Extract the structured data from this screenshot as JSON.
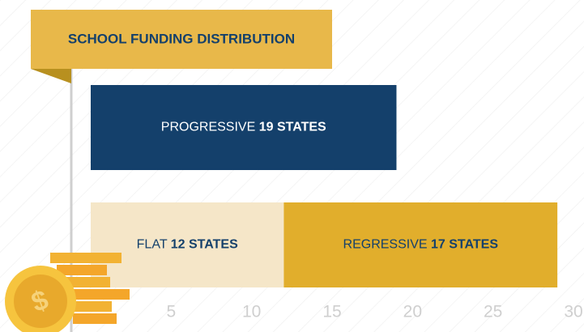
{
  "chart_data": {
    "type": "stacked-barh",
    "title": "SCHOOL FUNDING DISTRIBUTION",
    "categories": [
      null,
      null
    ],
    "series": [
      {
        "name": "PROGRESSIVE",
        "color": "#14406b",
        "values": [
          19,
          null
        ],
        "value_labels": [
          "19 STATES",
          null
        ]
      },
      {
        "name": "FLAT",
        "color": "#f5e6c8",
        "values": [
          null,
          12
        ],
        "value_labels": [
          null,
          "12 STATES"
        ]
      },
      {
        "name": "REGRESSIVE",
        "color": "#e1ae2c",
        "values": [
          null,
          17
        ],
        "value_labels": [
          null,
          "17 STATES"
        ]
      }
    ],
    "xlim": [
      0,
      30
    ],
    "xticks": [
      5,
      10,
      15,
      20,
      25,
      30
    ]
  }
}
